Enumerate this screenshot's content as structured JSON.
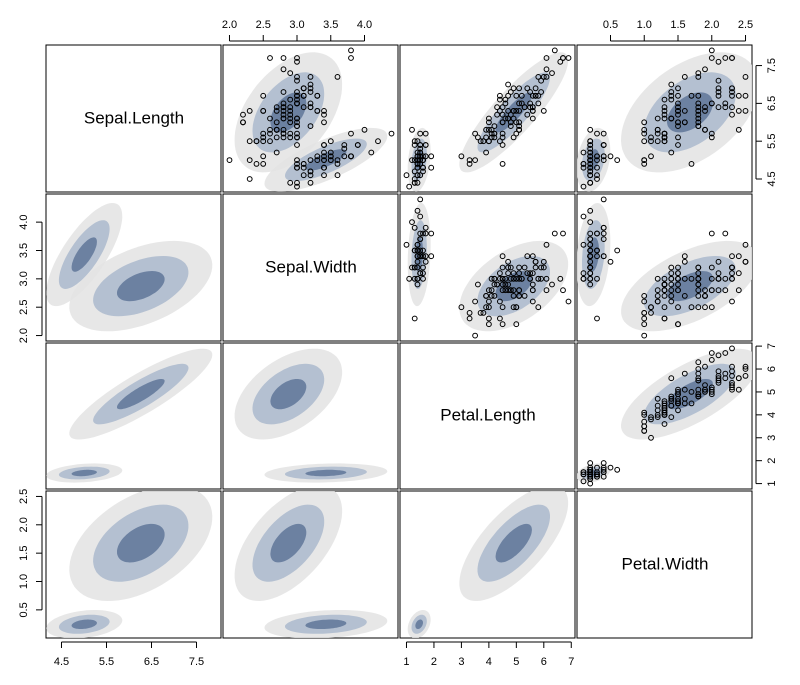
{
  "chart_data": {
    "type": "scatter",
    "layout": "pairs-matrix",
    "variables": [
      {
        "name": "Sepal.Length",
        "range": [
          4.3,
          7.9
        ],
        "ticks": [
          4.5,
          5.5,
          6.5,
          7.5
        ],
        "tick_labels": [
          "4.5",
          "5.5",
          "6.5",
          "7.5"
        ]
      },
      {
        "name": "Sepal.Width",
        "range": [
          2.0,
          4.4
        ],
        "ticks": [
          2.0,
          2.5,
          3.0,
          3.5,
          4.0
        ],
        "tick_labels": [
          "2.0",
          "2.5",
          "3.0",
          "3.5",
          "4.0"
        ]
      },
      {
        "name": "Petal.Length",
        "range": [
          1.0,
          6.9
        ],
        "ticks": [
          1,
          2,
          3,
          4,
          5,
          6,
          7
        ],
        "tick_labels": [
          "1",
          "2",
          "3",
          "4",
          "5",
          "6",
          "7"
        ]
      },
      {
        "name": "Petal.Width",
        "range": [
          0.1,
          2.5
        ],
        "ticks": [
          0.5,
          1.0,
          1.5,
          2.0,
          2.5
        ],
        "tick_labels": [
          "0.5",
          "1.0",
          "1.5",
          "2.0",
          "2.5"
        ]
      }
    ],
    "axes": {
      "bottom": [
        0,
        2
      ],
      "top": [
        1,
        3
      ],
      "left": [
        1,
        3
      ],
      "right": [
        0,
        2
      ]
    },
    "upper_panels": "scatter points with shaded density contours",
    "lower_panels": "shaded density contours (two clusters)",
    "colors": {
      "inner": "#5f7699",
      "middle": "#aab8cc",
      "outer": "#e3e3e3",
      "points": "#000000"
    },
    "clusters": [
      {
        "mean": [
          5.006,
          3.428,
          1.462,
          0.246
        ],
        "sd": [
          0.352,
          0.379,
          0.174,
          0.105
        ],
        "corr": [
          [
            1,
            0.743,
            0.267,
            0.278
          ],
          [
            0.743,
            1,
            0.178,
            0.233
          ],
          [
            0.267,
            0.178,
            1,
            0.332
          ],
          [
            0.278,
            0.233,
            0.332,
            1
          ]
        ]
      },
      {
        "mean": [
          6.262,
          2.872,
          4.906,
          1.676
        ],
        "sd": [
          0.662,
          0.332,
          0.826,
          0.425
        ],
        "corr": [
          [
            1,
            0.46,
            0.865,
            0.452
          ],
          [
            0.46,
            1,
            0.48,
            0.557
          ],
          [
            0.865,
            0.48,
            1,
            0.695
          ],
          [
            0.452,
            0.557,
            0.695,
            1
          ]
        ]
      }
    ],
    "points": [
      [
        5.1,
        3.5,
        1.4,
        0.2
      ],
      [
        4.9,
        3.0,
        1.4,
        0.2
      ],
      [
        4.7,
        3.2,
        1.3,
        0.2
      ],
      [
        4.6,
        3.1,
        1.5,
        0.2
      ],
      [
        5.0,
        3.6,
        1.4,
        0.2
      ],
      [
        5.4,
        3.9,
        1.7,
        0.4
      ],
      [
        4.6,
        3.4,
        1.4,
        0.3
      ],
      [
        5.0,
        3.4,
        1.5,
        0.2
      ],
      [
        4.4,
        2.9,
        1.4,
        0.2
      ],
      [
        4.9,
        3.1,
        1.5,
        0.1
      ],
      [
        5.4,
        3.7,
        1.5,
        0.2
      ],
      [
        4.8,
        3.4,
        1.6,
        0.2
      ],
      [
        4.8,
        3.0,
        1.4,
        0.1
      ],
      [
        4.3,
        3.0,
        1.1,
        0.1
      ],
      [
        5.8,
        4.0,
        1.2,
        0.2
      ],
      [
        5.7,
        4.4,
        1.5,
        0.4
      ],
      [
        5.4,
        3.9,
        1.3,
        0.4
      ],
      [
        5.1,
        3.5,
        1.4,
        0.3
      ],
      [
        5.7,
        3.8,
        1.7,
        0.3
      ],
      [
        5.1,
        3.8,
        1.5,
        0.3
      ],
      [
        5.4,
        3.4,
        1.7,
        0.2
      ],
      [
        5.1,
        3.7,
        1.5,
        0.4
      ],
      [
        4.6,
        3.6,
        1.0,
        0.2
      ],
      [
        5.1,
        3.3,
        1.7,
        0.5
      ],
      [
        4.8,
        3.4,
        1.9,
        0.2
      ],
      [
        5.0,
        3.0,
        1.6,
        0.2
      ],
      [
        5.0,
        3.4,
        1.6,
        0.4
      ],
      [
        5.2,
        3.5,
        1.5,
        0.2
      ],
      [
        5.2,
        3.4,
        1.4,
        0.2
      ],
      [
        4.7,
        3.2,
        1.6,
        0.2
      ],
      [
        4.8,
        3.1,
        1.6,
        0.2
      ],
      [
        5.4,
        3.4,
        1.5,
        0.4
      ],
      [
        5.2,
        4.1,
        1.5,
        0.1
      ],
      [
        5.5,
        4.2,
        1.4,
        0.2
      ],
      [
        4.9,
        3.1,
        1.5,
        0.2
      ],
      [
        5.0,
        3.2,
        1.2,
        0.2
      ],
      [
        5.5,
        3.5,
        1.3,
        0.2
      ],
      [
        4.9,
        3.6,
        1.4,
        0.1
      ],
      [
        4.4,
        3.0,
        1.3,
        0.2
      ],
      [
        5.1,
        3.4,
        1.5,
        0.2
      ],
      [
        5.0,
        3.5,
        1.3,
        0.3
      ],
      [
        4.5,
        2.3,
        1.3,
        0.3
      ],
      [
        4.4,
        3.2,
        1.3,
        0.2
      ],
      [
        5.0,
        3.5,
        1.6,
        0.6
      ],
      [
        5.1,
        3.8,
        1.9,
        0.4
      ],
      [
        4.8,
        3.0,
        1.4,
        0.3
      ],
      [
        5.1,
        3.8,
        1.6,
        0.2
      ],
      [
        4.6,
        3.2,
        1.4,
        0.2
      ],
      [
        5.3,
        3.7,
        1.5,
        0.2
      ],
      [
        5.0,
        3.3,
        1.4,
        0.2
      ],
      [
        7.0,
        3.2,
        4.7,
        1.4
      ],
      [
        6.4,
        3.2,
        4.5,
        1.5
      ],
      [
        6.9,
        3.1,
        4.9,
        1.5
      ],
      [
        5.5,
        2.3,
        4.0,
        1.3
      ],
      [
        6.5,
        2.8,
        4.6,
        1.5
      ],
      [
        5.7,
        2.8,
        4.5,
        1.3
      ],
      [
        6.3,
        3.3,
        4.7,
        1.6
      ],
      [
        4.9,
        2.4,
        3.3,
        1.0
      ],
      [
        6.6,
        2.9,
        4.6,
        1.3
      ],
      [
        5.2,
        2.7,
        3.9,
        1.4
      ],
      [
        5.0,
        2.0,
        3.5,
        1.0
      ],
      [
        5.9,
        3.0,
        4.2,
        1.5
      ],
      [
        6.0,
        2.2,
        4.0,
        1.0
      ],
      [
        6.1,
        2.9,
        4.7,
        1.4
      ],
      [
        5.6,
        2.9,
        3.6,
        1.3
      ],
      [
        6.7,
        3.1,
        4.4,
        1.4
      ],
      [
        5.6,
        3.0,
        4.5,
        1.5
      ],
      [
        5.8,
        2.7,
        4.1,
        1.0
      ],
      [
        6.2,
        2.2,
        4.5,
        1.5
      ],
      [
        5.6,
        2.5,
        3.9,
        1.1
      ],
      [
        5.9,
        3.2,
        4.8,
        1.8
      ],
      [
        6.1,
        2.8,
        4.0,
        1.3
      ],
      [
        6.3,
        2.5,
        4.9,
        1.5
      ],
      [
        6.1,
        2.8,
        4.7,
        1.2
      ],
      [
        6.4,
        2.9,
        4.3,
        1.3
      ],
      [
        6.6,
        3.0,
        4.4,
        1.4
      ],
      [
        6.8,
        2.8,
        4.8,
        1.4
      ],
      [
        6.7,
        3.0,
        5.0,
        1.7
      ],
      [
        6.0,
        2.9,
        4.5,
        1.5
      ],
      [
        5.7,
        2.6,
        3.5,
        1.0
      ],
      [
        5.5,
        2.4,
        3.8,
        1.1
      ],
      [
        5.5,
        2.4,
        3.7,
        1.0
      ],
      [
        5.8,
        2.7,
        3.9,
        1.2
      ],
      [
        6.0,
        2.7,
        5.1,
        1.6
      ],
      [
        5.4,
        3.0,
        4.5,
        1.5
      ],
      [
        6.0,
        3.4,
        4.5,
        1.6
      ],
      [
        6.7,
        3.1,
        4.7,
        1.5
      ],
      [
        6.3,
        2.3,
        4.4,
        1.3
      ],
      [
        5.6,
        3.0,
        4.1,
        1.3
      ],
      [
        5.5,
        2.5,
        4.0,
        1.3
      ],
      [
        5.5,
        2.6,
        4.4,
        1.2
      ],
      [
        6.1,
        3.0,
        4.6,
        1.4
      ],
      [
        5.8,
        2.6,
        4.0,
        1.2
      ],
      [
        5.0,
        2.3,
        3.3,
        1.0
      ],
      [
        5.6,
        2.7,
        4.2,
        1.3
      ],
      [
        5.7,
        3.0,
        4.2,
        1.2
      ],
      [
        5.7,
        2.9,
        4.2,
        1.3
      ],
      [
        6.2,
        2.9,
        4.3,
        1.3
      ],
      [
        5.1,
        2.5,
        3.0,
        1.1
      ],
      [
        5.7,
        2.8,
        4.1,
        1.3
      ],
      [
        6.3,
        3.3,
        6.0,
        2.5
      ],
      [
        5.8,
        2.7,
        5.1,
        1.9
      ],
      [
        7.1,
        3.0,
        5.9,
        2.1
      ],
      [
        6.3,
        2.9,
        5.6,
        1.8
      ],
      [
        6.5,
        3.0,
        5.8,
        2.2
      ],
      [
        7.6,
        3.0,
        6.6,
        2.1
      ],
      [
        4.9,
        2.5,
        4.5,
        1.7
      ],
      [
        7.3,
        2.9,
        6.3,
        1.8
      ],
      [
        6.7,
        2.5,
        5.8,
        1.8
      ],
      [
        7.2,
        3.6,
        6.1,
        2.5
      ],
      [
        6.5,
        3.2,
        5.1,
        2.0
      ],
      [
        6.4,
        2.7,
        5.3,
        1.9
      ],
      [
        6.8,
        3.0,
        5.5,
        2.1
      ],
      [
        5.7,
        2.5,
        5.0,
        2.0
      ],
      [
        5.8,
        2.8,
        5.1,
        2.4
      ],
      [
        6.4,
        3.2,
        5.3,
        2.3
      ],
      [
        6.5,
        3.0,
        5.5,
        1.8
      ],
      [
        7.7,
        3.8,
        6.7,
        2.2
      ],
      [
        7.7,
        2.6,
        6.9,
        2.3
      ],
      [
        6.0,
        2.2,
        5.0,
        1.5
      ],
      [
        6.9,
        3.2,
        5.7,
        2.3
      ],
      [
        5.6,
        2.8,
        4.9,
        2.0
      ],
      [
        7.7,
        2.8,
        6.7,
        2.0
      ],
      [
        6.3,
        2.7,
        4.9,
        1.8
      ],
      [
        6.7,
        3.3,
        5.7,
        2.1
      ],
      [
        7.2,
        3.2,
        6.0,
        1.8
      ],
      [
        6.2,
        2.8,
        4.8,
        1.8
      ],
      [
        6.1,
        3.0,
        4.9,
        1.8
      ],
      [
        6.4,
        2.8,
        5.6,
        2.1
      ],
      [
        7.2,
        3.0,
        5.8,
        1.6
      ],
      [
        7.4,
        2.8,
        6.1,
        1.9
      ],
      [
        7.9,
        3.8,
        6.4,
        2.0
      ],
      [
        6.4,
        2.8,
        5.6,
        2.2
      ],
      [
        6.3,
        2.8,
        5.1,
        1.5
      ],
      [
        6.1,
        2.6,
        5.6,
        1.4
      ],
      [
        7.7,
        3.0,
        6.1,
        2.3
      ],
      [
        6.3,
        3.4,
        5.6,
        2.4
      ],
      [
        6.4,
        3.1,
        5.5,
        1.8
      ],
      [
        6.0,
        3.0,
        4.8,
        1.8
      ],
      [
        6.9,
        3.1,
        5.4,
        2.1
      ],
      [
        6.7,
        3.1,
        5.6,
        2.4
      ],
      [
        6.9,
        3.1,
        5.1,
        2.3
      ],
      [
        5.8,
        2.7,
        5.1,
        1.9
      ],
      [
        6.8,
        3.2,
        5.9,
        2.3
      ],
      [
        6.7,
        3.3,
        5.7,
        2.5
      ],
      [
        6.7,
        3.0,
        5.2,
        2.3
      ],
      [
        6.3,
        2.5,
        5.0,
        1.9
      ],
      [
        6.5,
        3.0,
        5.2,
        2.0
      ],
      [
        6.2,
        3.4,
        5.4,
        2.3
      ],
      [
        5.9,
        3.0,
        5.1,
        1.8
      ]
    ]
  }
}
